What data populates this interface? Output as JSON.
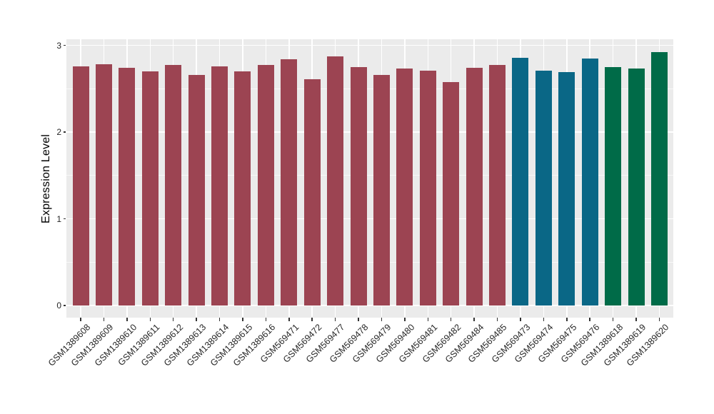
{
  "colors": {
    "panel_bg": "#EBEBEB",
    "grid": "#FFFFFF",
    "tick_mark": "#333333",
    "axis_text": "#262626",
    "axis_title": "#000000",
    "palette": [
      "#9C4452",
      "#0A6786",
      "#006B48"
    ]
  },
  "chart_data": {
    "type": "bar",
    "title": "",
    "xlabel": "",
    "ylabel": "Expression Level",
    "ylim": [
      0,
      3
    ],
    "grid": "on",
    "legend": "none",
    "yticks": [
      {
        "value": 0,
        "label": "0"
      },
      {
        "value": 1,
        "label": "1"
      },
      {
        "value": 2,
        "label": "2"
      },
      {
        "value": 3,
        "label": "3"
      }
    ],
    "yticks_minor": [
      0.5,
      1.5,
      2.5
    ],
    "categories": [
      "GSM1389608",
      "GSM1389609",
      "GSM1389610",
      "GSM1389611",
      "GSM1389612",
      "GSM1389613",
      "GSM1389614",
      "GSM1389615",
      "GSM1389616",
      "GSM569471",
      "GSM569472",
      "GSM569477",
      "GSM569478",
      "GSM569479",
      "GSM569480",
      "GSM569481",
      "GSM569482",
      "GSM569484",
      "GSM569485",
      "GSM569473",
      "GSM569474",
      "GSM569475",
      "GSM569476",
      "GSM1389618",
      "GSM1389619",
      "GSM1389620"
    ],
    "values": [
      2.76,
      2.78,
      2.74,
      2.7,
      2.77,
      2.66,
      2.76,
      2.7,
      2.77,
      2.84,
      2.61,
      2.87,
      2.75,
      2.66,
      2.73,
      2.71,
      2.58,
      2.74,
      2.77,
      2.86,
      2.71,
      2.69,
      2.85,
      2.75,
      2.73,
      2.92
    ],
    "group_index": [
      0,
      0,
      0,
      0,
      0,
      0,
      0,
      0,
      0,
      0,
      0,
      0,
      0,
      0,
      0,
      0,
      0,
      0,
      0,
      1,
      1,
      1,
      1,
      2,
      2,
      2
    ]
  }
}
